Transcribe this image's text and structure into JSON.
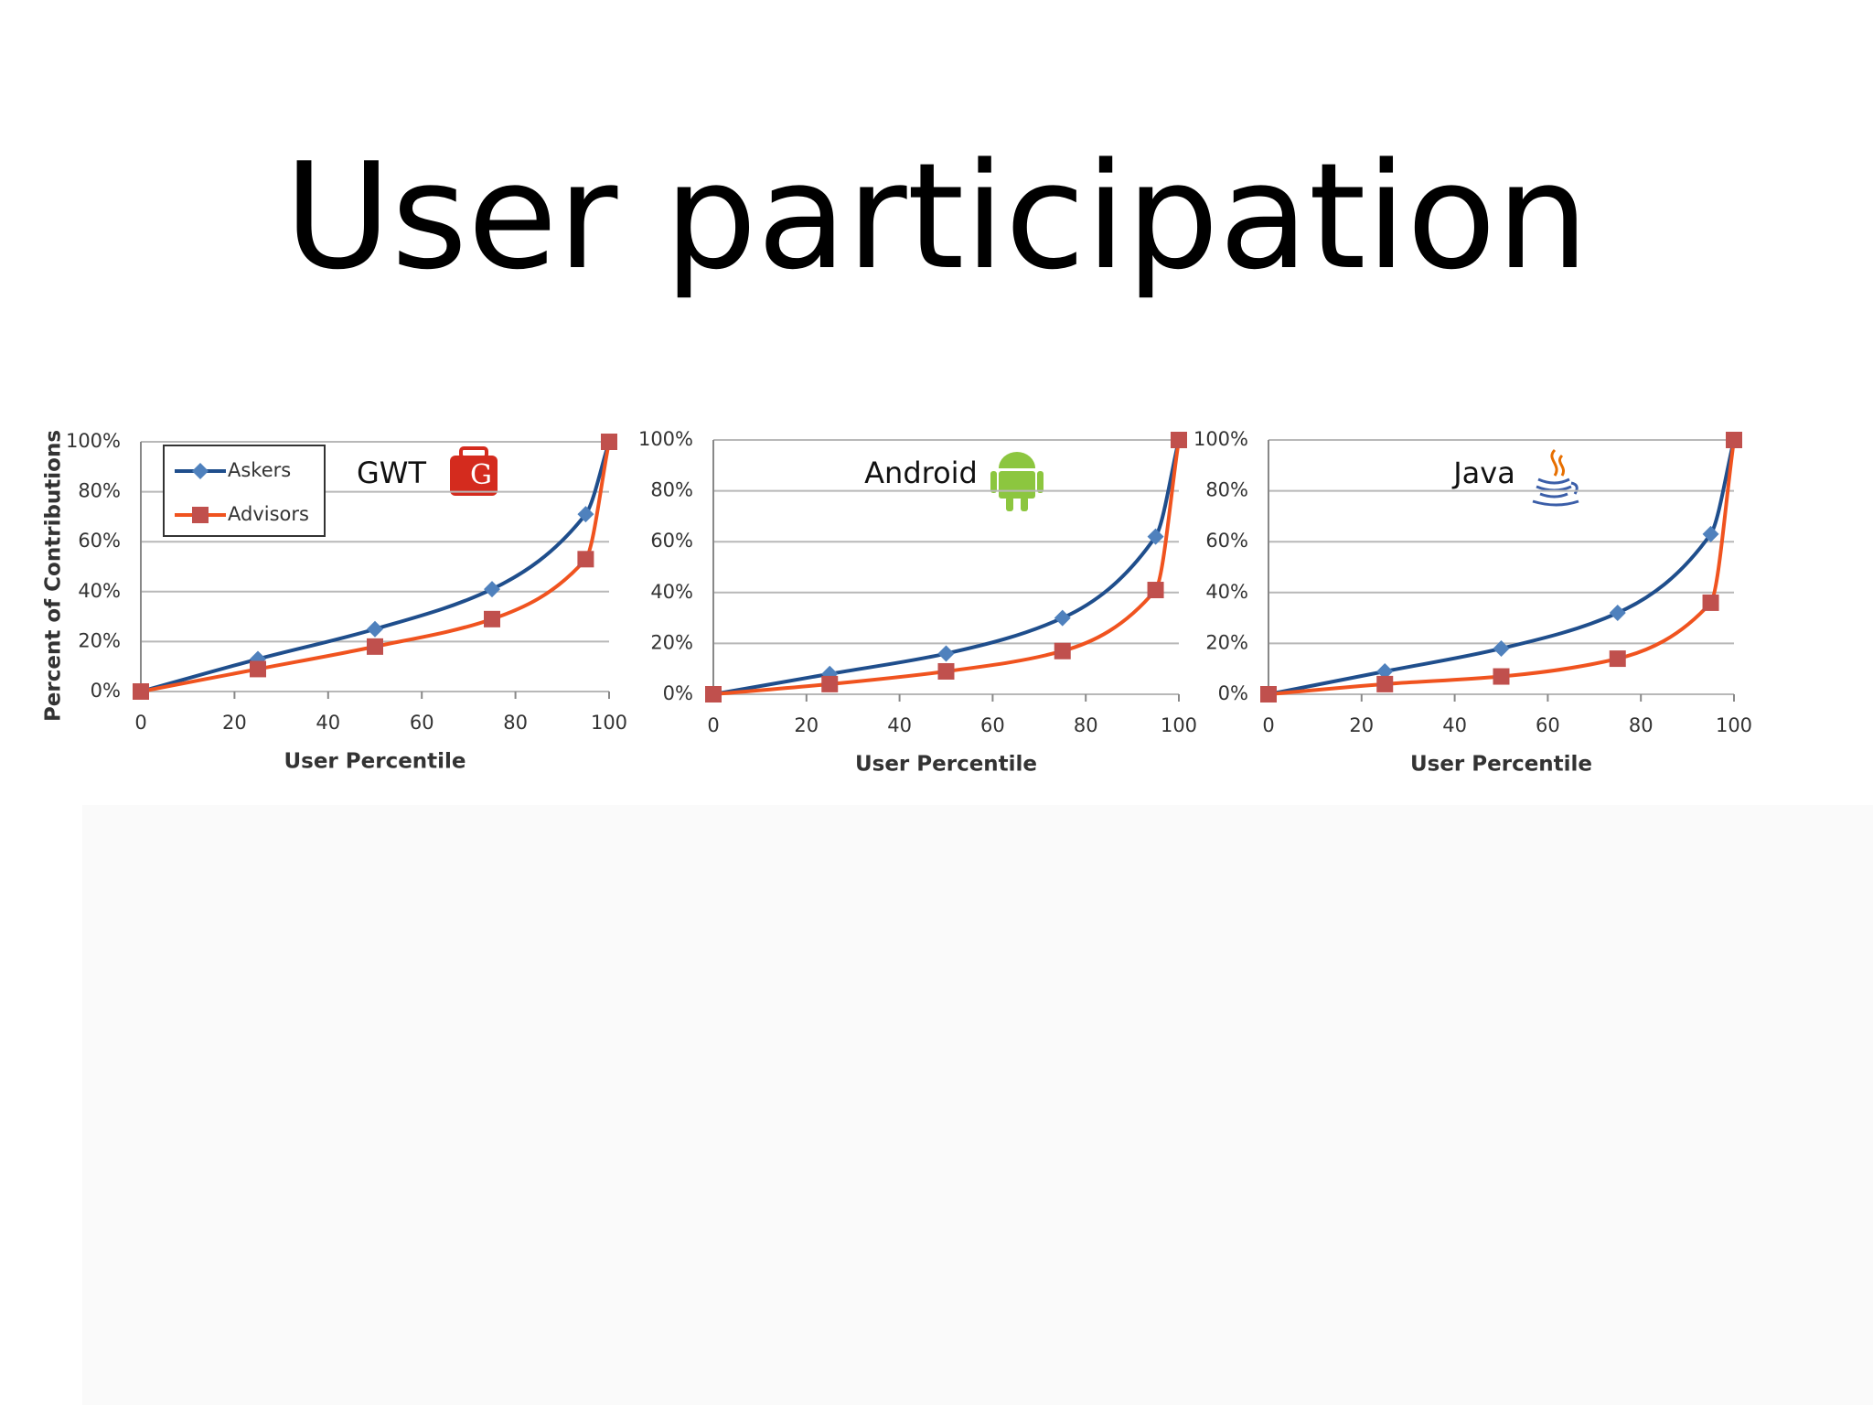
{
  "title": "User participation",
  "chart_data": [
    {
      "type": "line",
      "title": "GWT",
      "x_label": "User Percentile",
      "y_label": "Percent of Contributions",
      "legend": "top-left",
      "x": [
        0,
        25,
        50,
        75,
        95,
        100
      ],
      "series": [
        {
          "name": "Askers",
          "color": "#1f4e8c",
          "marker_color": "#4f81bd",
          "marker": "diamond",
          "values": [
            0,
            13,
            25,
            41,
            71,
            100
          ]
        },
        {
          "name": "Advisors",
          "color": "#f0531f",
          "marker_color": "#c0504d",
          "marker": "square",
          "values": [
            0,
            9,
            18,
            29,
            53,
            100
          ]
        }
      ],
      "xlim": [
        0,
        100
      ],
      "xticks": [
        0,
        20,
        40,
        60,
        80,
        100
      ],
      "ylim": [
        0,
        100
      ],
      "yticks": [
        {
          "value": 0,
          "label": "0%"
        },
        {
          "value": 20,
          "label": "20%"
        },
        {
          "value": 40,
          "label": "40%"
        },
        {
          "value": 60,
          "label": "60%"
        },
        {
          "value": 80,
          "label": "80%"
        },
        {
          "value": 100,
          "label": "100%"
        }
      ],
      "grid": true
    },
    {
      "type": "line",
      "title": "Android",
      "x_label": "User Percentile",
      "x": [
        0,
        25,
        50,
        75,
        95,
        100
      ],
      "series": [
        {
          "color": "#1f4e8c",
          "marker_color": "#4f81bd",
          "marker": "diamond",
          "values": [
            0,
            8,
            16,
            30,
            62,
            100
          ]
        },
        {
          "color": "#f0531f",
          "marker_color": "#c0504d",
          "marker": "square",
          "values": [
            0,
            4,
            9,
            17,
            41,
            100
          ]
        }
      ],
      "xlim": [
        0,
        100
      ],
      "xticks": [
        0,
        20,
        40,
        60,
        80,
        100
      ],
      "ylim": [
        0,
        100
      ],
      "yticks": [
        {
          "value": 0,
          "label": "0%"
        },
        {
          "value": 20,
          "label": "20%"
        },
        {
          "value": 40,
          "label": "40%"
        },
        {
          "value": 60,
          "label": "60%"
        },
        {
          "value": 80,
          "label": "80%"
        },
        {
          "value": 100,
          "label": "100%"
        }
      ],
      "grid": true
    },
    {
      "type": "line",
      "title": "Java",
      "x_label": "User Percentile",
      "x": [
        0,
        25,
        50,
        75,
        95,
        100
      ],
      "series": [
        {
          "color": "#1f4e8c",
          "marker_color": "#4f81bd",
          "marker": "diamond",
          "values": [
            0,
            9,
            18,
            32,
            63,
            100
          ]
        },
        {
          "color": "#f0531f",
          "marker_color": "#c0504d",
          "marker": "square",
          "values": [
            0,
            4,
            7,
            14,
            36,
            100
          ]
        }
      ],
      "xlim": [
        0,
        100
      ],
      "xticks": [
        0,
        20,
        40,
        60,
        80,
        100
      ],
      "ylim": [
        0,
        100
      ],
      "yticks": [
        {
          "value": 0,
          "label": "0%"
        },
        {
          "value": 20,
          "label": "20%"
        },
        {
          "value": 40,
          "label": "40%"
        },
        {
          "value": 60,
          "label": "60%"
        },
        {
          "value": 80,
          "label": "80%"
        },
        {
          "value": 100,
          "label": "100%"
        }
      ],
      "grid": true
    }
  ]
}
